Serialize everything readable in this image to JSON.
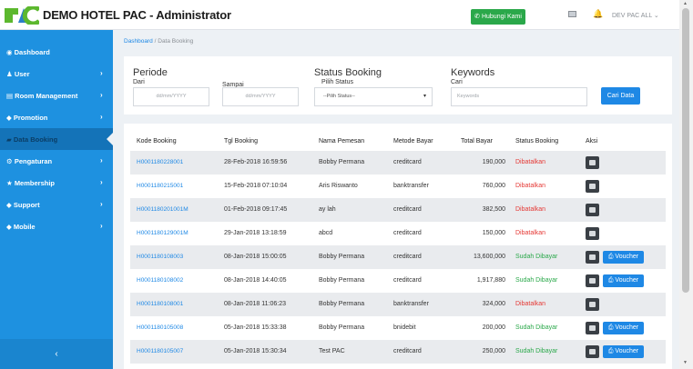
{
  "header": {
    "brand": "DEMO HOTEL PAC - Administrator",
    "contact_button": "Hubungi Kami",
    "user": "DEV PAC ALL"
  },
  "sidebar": {
    "items": [
      {
        "label": "Dashboard",
        "icon": "dashboard-icon",
        "has_chevron": false
      },
      {
        "label": "User",
        "icon": "user-icon",
        "has_chevron": true
      },
      {
        "label": "Room Management",
        "icon": "list-icon",
        "has_chevron": true
      },
      {
        "label": "Promotion",
        "icon": "tag-icon",
        "has_chevron": true
      },
      {
        "label": "Data Booking",
        "icon": "book-icon",
        "has_chevron": false,
        "active": true
      },
      {
        "label": "Pengaturan",
        "icon": "wrench-icon",
        "has_chevron": true
      },
      {
        "label": "Membership",
        "icon": "star-icon",
        "has_chevron": true
      },
      {
        "label": "Support",
        "icon": "tag-icon",
        "has_chevron": true
      },
      {
        "label": "Mobile",
        "icon": "tag-icon",
        "has_chevron": true
      }
    ],
    "collapse": "‹"
  },
  "breadcrumb": {
    "home": "Dashboard",
    "sep": "/",
    "current": "Data Booking"
  },
  "filter": {
    "periode_title": "Periode",
    "dari_label": "Dari",
    "dari_placeholder": "dd/mm/YYYY",
    "sampai_label": "Sampai",
    "sampai_placeholder": "dd/mm/YYYY",
    "status_title": "Status Booking",
    "status_label": "Pilih Status",
    "status_value": "--Pilih Status--",
    "keywords_title": "Keywords",
    "cari_label": "Cari",
    "keywords_placeholder": "Keywords",
    "search_button": "Cari Data"
  },
  "table": {
    "columns": [
      "Kode Booking",
      "Tgl Booking",
      "Nama Pemesan",
      "Metode Bayar",
      "Total Bayar",
      "Status Booking",
      "Aksi"
    ],
    "voucher_label": "Voucher",
    "rows": [
      {
        "code": "H0001180228001",
        "date": "28-Feb-2018 16:59:56",
        "name": "Bobby Permana",
        "method": "creditcard",
        "total": "190,000",
        "status": "Dibatalkan",
        "paid": false
      },
      {
        "code": "H0001180215001",
        "date": "15-Feb-2018 07:10:04",
        "name": "Aris Riswanto",
        "method": "banktransfer",
        "total": "760,000",
        "status": "Dibatalkan",
        "paid": false
      },
      {
        "code": "H0001180201001M",
        "date": "01-Feb-2018 09:17:45",
        "name": "ay lah",
        "method": "creditcard",
        "total": "382,500",
        "status": "Dibatalkan",
        "paid": false
      },
      {
        "code": "H0001180129001M",
        "date": "29-Jan-2018 13:18:59",
        "name": "abcd",
        "method": "creditcard",
        "total": "150,000",
        "status": "Dibatalkan",
        "paid": false
      },
      {
        "code": "H0001180108003",
        "date": "08-Jan-2018 15:00:05",
        "name": "Bobby Permana",
        "method": "creditcard",
        "total": "13,600,000",
        "status": "Sudah Dibayar",
        "paid": true
      },
      {
        "code": "H0001180108002",
        "date": "08-Jan-2018 14:40:05",
        "name": "Bobby Permana",
        "method": "creditcard",
        "total": "1,917,880",
        "status": "Sudah Dibayar",
        "paid": true
      },
      {
        "code": "H0001180108001",
        "date": "08-Jan-2018 11:06:23",
        "name": "Bobby Permana",
        "method": "banktransfer",
        "total": "324,000",
        "status": "Dibatalkan",
        "paid": false
      },
      {
        "code": "H0001180105008",
        "date": "05-Jan-2018 15:33:38",
        "name": "Bobby Permana",
        "method": "bnidebit",
        "total": "200,000",
        "status": "Sudah Dibayar",
        "paid": true
      },
      {
        "code": "H0001180105007",
        "date": "05-Jan-2018 15:30:34",
        "name": "Test PAC",
        "method": "creditcard",
        "total": "250,000",
        "status": "Sudah Dibayar",
        "paid": true
      }
    ]
  },
  "colors": {
    "sidebar": "#1e91e0",
    "accent": "#1e88e5",
    "success": "#2aa84a",
    "danger": "#e53935"
  }
}
